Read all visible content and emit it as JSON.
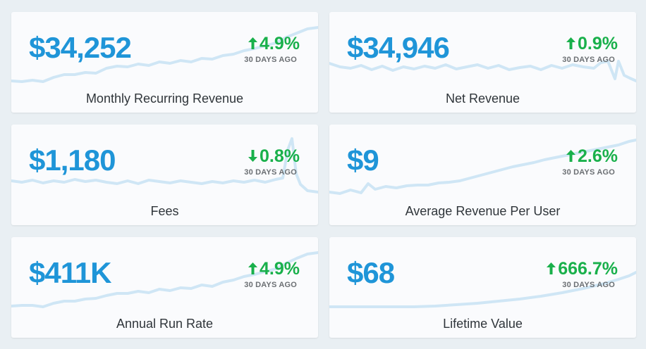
{
  "cards": [
    {
      "value": "$34,252",
      "change": "4.9%",
      "direction": "up",
      "period": "30 DAYS AGO",
      "label": "Monthly Recurring Revenue"
    },
    {
      "value": "$34,946",
      "change": "0.9%",
      "direction": "up",
      "period": "30 DAYS AGO",
      "label": "Net Revenue"
    },
    {
      "value": "$1,180",
      "change": "0.8%",
      "direction": "down",
      "period": "30 DAYS AGO",
      "label": "Fees"
    },
    {
      "value": "$9",
      "change": "2.6%",
      "direction": "up",
      "period": "30 DAYS AGO",
      "label": "Average Revenue Per User"
    },
    {
      "value": "$411K",
      "change": "4.9%",
      "direction": "up",
      "period": "30 DAYS AGO",
      "label": "Annual Run Rate"
    },
    {
      "value": "$68",
      "change": "666.7%",
      "direction": "up",
      "period": "30 DAYS AGO",
      "label": "Lifetime Value"
    }
  ],
  "colors": {
    "value": "#1f95d8",
    "positive": "#19b04b",
    "sparkline": "#cfe6f5",
    "background": "#e9eff3"
  }
}
